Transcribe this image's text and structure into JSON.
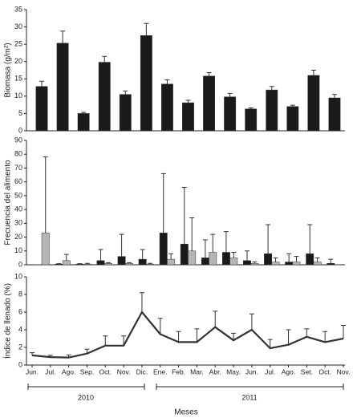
{
  "chart_data": [
    {
      "type": "bar",
      "ylabel": "Biomasa (g/m²)",
      "ylim": [
        0,
        35
      ],
      "yticks": [
        0,
        5,
        10,
        15,
        20,
        25,
        30,
        35
      ],
      "categories": [
        null,
        null,
        null,
        null,
        null,
        null,
        null,
        null,
        null,
        null,
        null,
        null,
        null,
        null,
        null
      ],
      "series": [
        {
          "color": "#1a1a1a",
          "values": [
            12.8,
            25.3,
            5,
            19.8,
            10.5,
            27.5,
            13.5,
            8.1,
            15.8,
            9.8,
            6.3,
            11.8,
            7,
            16,
            9.5
          ],
          "errors": [
            1.5,
            3.5,
            0.3,
            1.7,
            1,
            3.5,
            1.2,
            0.7,
            1,
            1,
            0.3,
            1,
            0.4,
            1.5,
            1
          ]
        }
      ]
    },
    {
      "type": "bar",
      "ylabel": "Frecuencia del alimento",
      "ylim": [
        0,
        90
      ],
      "yticks": [
        0,
        10,
        20,
        30,
        40,
        50,
        60,
        70,
        80,
        90
      ],
      "categories": [
        null,
        null,
        null,
        null,
        null,
        null,
        null,
        null,
        null,
        null,
        null,
        null,
        null,
        null,
        null
      ],
      "series": [
        {
          "color": "#1a1a1a",
          "values": [
            0,
            0.5,
            0.5,
            3,
            6,
            4,
            23,
            15,
            5,
            9,
            3,
            8,
            2,
            8,
            1
          ],
          "errors": [
            0,
            0.3,
            0.3,
            8,
            16,
            7,
            43,
            41,
            13,
            15,
            7,
            21,
            6,
            21,
            3
          ]
        },
        {
          "color": "#b5b5b5",
          "values": [
            23,
            3,
            0.5,
            1,
            1,
            0.5,
            4,
            10,
            9,
            5,
            1,
            2,
            2,
            2,
            0
          ],
          "errors": [
            55,
            4.5,
            0.5,
            0.5,
            0.5,
            0.5,
            4,
            24,
            13,
            4,
            1,
            3,
            4,
            3,
            0
          ]
        }
      ]
    },
    {
      "type": "line",
      "ylabel": "Índice de llenado (%)",
      "ylim": [
        0,
        10
      ],
      "yticks": [
        0,
        2,
        4,
        6,
        8,
        10
      ],
      "categories": [
        "Jun.",
        "Jul.",
        "Ago.",
        "Sep.",
        "Oct.",
        "Nov.",
        "Dic.",
        "Ene.",
        "Feb.",
        "Mar.",
        "Abr.",
        "May.",
        "Jun.",
        "Jul.",
        "Ago.",
        "Set.",
        "Oct.",
        "Nov."
      ],
      "series": [
        {
          "color": "#333333",
          "values": [
            1.1,
            0.9,
            0.85,
            1.3,
            2.2,
            2.2,
            6,
            3.5,
            2.6,
            2.6,
            4.3,
            2.8,
            4.0,
            1.9,
            2.3,
            3.2,
            2.6,
            3.0
          ],
          "errors": [
            0.3,
            0.2,
            0.3,
            0.5,
            1.1,
            1.1,
            2.2,
            1.8,
            1.2,
            1.5,
            1.8,
            0.8,
            1.8,
            1,
            1.7,
            0.9,
            1.2,
            1.5
          ]
        }
      ],
      "annotations": [
        "2010",
        "2011"
      ],
      "xlabel": "Meses"
    }
  ]
}
